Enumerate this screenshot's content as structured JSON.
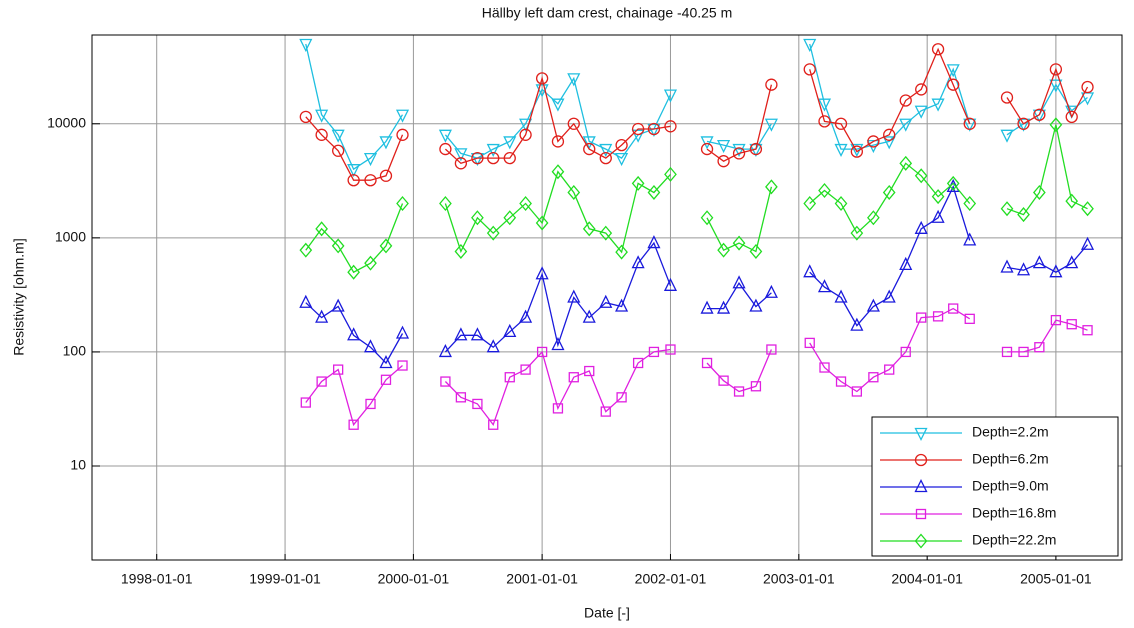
{
  "chart_data": {
    "type": "line",
    "title": "Hällby left dam crest, chainage -40.25 m",
    "xlabel": "Date  [-]",
    "ylabel": "Resistivity  [ohm.m]",
    "yscale": "log",
    "grid": true,
    "legend": "lower right",
    "xlim": [
      "1997-07-01",
      "2005-07-08"
    ],
    "xticks": [
      "1998-01-01",
      "1999-01-01",
      "2000-01-01",
      "2001-01-01",
      "2002-01-01",
      "2003-01-01",
      "2004-01-01",
      "2005-01-01"
    ],
    "ylim": [
      1.5,
      60000
    ],
    "yticks": [
      10,
      100,
      1000,
      10000
    ],
    "x": [
      "1999-03-01",
      "1999-04-15",
      "1999-06-01",
      "1999-07-15",
      "1999-09-01",
      "1999-10-15",
      "1999-12-01",
      "2000-01-20",
      "2000-04-01",
      "2000-05-15",
      "2000-07-01",
      "2000-08-15",
      "2000-10-01",
      "2000-11-15",
      "2001-01-01",
      "2001-02-15",
      "2001-04-01",
      "2001-05-15",
      "2001-07-01",
      "2001-08-15",
      "2001-10-01",
      "2001-11-15",
      "2002-01-01",
      "2002-02-20",
      "2002-04-15",
      "2002-06-01",
      "2002-07-15",
      "2002-09-01",
      "2002-10-15",
      "2002-12-01",
      "2003-02-01",
      "2003-03-15",
      "2003-05-01",
      "2003-06-15",
      "2003-08-01",
      "2003-09-15",
      "2003-11-01",
      "2003-12-15",
      "2004-02-01",
      "2004-03-15",
      "2004-05-01",
      "2004-06-15",
      "2004-08-15",
      "2004-10-01",
      "2004-11-15",
      "2005-01-01",
      "2005-02-15",
      "2005-04-01"
    ],
    "series": [
      {
        "name": "Depth=2.2m",
        "color": "#1fbfe0",
        "marker": "triangle-down",
        "values": [
          50000,
          12000,
          8000,
          4000,
          5000,
          7000,
          12000,
          null,
          8000,
          5500,
          5000,
          6000,
          7000,
          10000,
          20000,
          15000,
          25000,
          7000,
          6000,
          5000,
          8000,
          9000,
          18000,
          null,
          7000,
          6500,
          6000,
          6000,
          10000,
          null,
          50000,
          15000,
          6000,
          6000,
          6500,
          7000,
          10000,
          13000,
          15000,
          30000,
          10000,
          null,
          8000,
          10000,
          12000,
          22000,
          13000,
          17000
        ]
      },
      {
        "name": "Depth=6.2m",
        "color": "#e0201b",
        "marker": "circle",
        "values": [
          11500,
          8000,
          5800,
          3200,
          3200,
          3500,
          8000,
          null,
          6000,
          4500,
          5000,
          5000,
          5000,
          8000,
          25000,
          7000,
          10000,
          6000,
          5000,
          6500,
          9000,
          9000,
          9500,
          null,
          6000,
          4700,
          5500,
          6000,
          22000,
          null,
          30000,
          10500,
          10000,
          5700,
          7000,
          8000,
          16000,
          20000,
          45000,
          22000,
          10000,
          null,
          17000,
          10000,
          12000,
          30000,
          11500,
          21000
        ]
      },
      {
        "name": "Depth=9.0m",
        "color": "#1a1adc",
        "marker": "triangle-up",
        "values": [
          270,
          200,
          250,
          140,
          110,
          80,
          145,
          null,
          100,
          140,
          140,
          110,
          150,
          200,
          480,
          115,
          300,
          200,
          270,
          250,
          600,
          900,
          380,
          null,
          240,
          240,
          400,
          250,
          330,
          null,
          500,
          370,
          300,
          170,
          250,
          300,
          580,
          1200,
          1500,
          2800,
          950,
          null,
          550,
          520,
          600,
          500,
          600,
          870
        ]
      },
      {
        "name": "Depth=16.8m",
        "color": "#e020e0",
        "marker": "square",
        "values": [
          36,
          55,
          70,
          23,
          35,
          57,
          76,
          null,
          55,
          40,
          35,
          23,
          60,
          70,
          100,
          32,
          60,
          68,
          30,
          40,
          80,
          100,
          105,
          null,
          80,
          56,
          45,
          50,
          105,
          null,
          120,
          73,
          55,
          45,
          60,
          70,
          100,
          200,
          205,
          240,
          195,
          null,
          100,
          100,
          110,
          190,
          175,
          155
        ]
      },
      {
        "name": "Depth=22.2m",
        "color": "#22dd22",
        "marker": "diamond",
        "values": [
          780,
          1200,
          850,
          500,
          600,
          850,
          2000,
          null,
          2000,
          760,
          1500,
          1100,
          1500,
          2000,
          1350,
          3800,
          2500,
          1200,
          1100,
          750,
          3000,
          2500,
          3600,
          null,
          1500,
          780,
          900,
          760,
          2800,
          null,
          2000,
          2600,
          2000,
          1100,
          1500,
          2500,
          4500,
          3500,
          2300,
          3000,
          2000,
          null,
          1800,
          1600,
          2500,
          9800,
          2100,
          1800
        ]
      }
    ]
  }
}
